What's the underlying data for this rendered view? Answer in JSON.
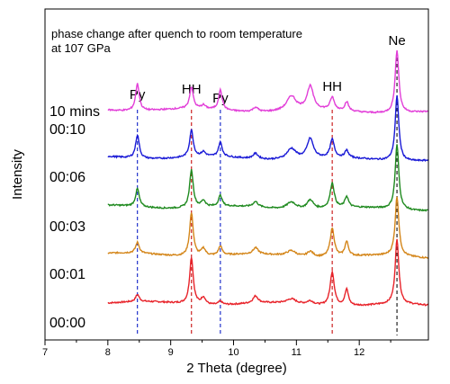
{
  "chart_data": {
    "type": "line",
    "title": "phase change after quench to room temperature\nat 107 GPa",
    "xlabel": "2 Theta (degree)",
    "ylabel": "Intensity",
    "xlim": [
      7,
      13.1
    ],
    "xticks": [
      7,
      8,
      9,
      10,
      11,
      12
    ],
    "y_ticks_shown": false,
    "grid": false,
    "series": [
      {
        "name": "00:00",
        "color": "#e8232a",
        "offset": 0
      },
      {
        "name": "00:01",
        "color": "#d4861a",
        "offset": 1
      },
      {
        "name": "00:03",
        "color": "#1f8a1f",
        "offset": 2
      },
      {
        "name": "00:06",
        "color": "#1a1ad6",
        "offset": 3
      },
      {
        "name": "00:10",
        "color": "#e23ed8",
        "offset": 4
      }
    ],
    "extra_label": "10 mins",
    "x_start": 8.0,
    "x_end": 13.1,
    "peaks": [
      {
        "x": 8.47,
        "width": 0.035,
        "heights": [
          8,
          12,
          20,
          26,
          30
        ]
      },
      {
        "x": 9.33,
        "width": 0.035,
        "heights": [
          52,
          48,
          42,
          30,
          24
        ]
      },
      {
        "x": 9.52,
        "width": 0.04,
        "heights": [
          8,
          8,
          7,
          5,
          4
        ]
      },
      {
        "x": 9.79,
        "width": 0.035,
        "heights": [
          4,
          10,
          12,
          16,
          22
        ]
      },
      {
        "x": 10.35,
        "width": 0.05,
        "heights": [
          8,
          7,
          6,
          6,
          5
        ]
      },
      {
        "x": 10.92,
        "width": 0.09,
        "heights": [
          5,
          6,
          8,
          12,
          16
        ]
      },
      {
        "x": 11.22,
        "width": 0.06,
        "heights": [
          4,
          6,
          10,
          22,
          26
        ]
      },
      {
        "x": 11.57,
        "width": 0.04,
        "heights": [
          38,
          32,
          28,
          20,
          14
        ]
      },
      {
        "x": 11.8,
        "width": 0.035,
        "heights": [
          18,
          16,
          12,
          8,
          10
        ]
      },
      {
        "x": 12.6,
        "width": 0.035,
        "heights": [
          72,
          66,
          72,
          72,
          70
        ]
      }
    ],
    "reference_lines": [
      {
        "label": "Py",
        "x": 8.47,
        "color": "#2233cc"
      },
      {
        "label": "HH",
        "x": 9.33,
        "color": "#cc2222"
      },
      {
        "label": "Py",
        "x": 9.79,
        "color": "#2233cc"
      },
      {
        "label": "HH",
        "x": 11.57,
        "color": "#cc2222"
      },
      {
        "label": "Ne",
        "x": 12.6,
        "color": "#222222"
      }
    ]
  }
}
